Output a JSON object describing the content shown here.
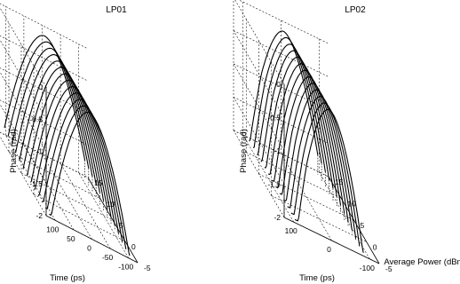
{
  "chart_data": [
    {
      "type": "line",
      "title": "LP01",
      "xlabel": "Time (ps)",
      "ylabel": "Phase (rad)",
      "zlabel": "",
      "x_ticks": [
        "100",
        "50",
        "0",
        "-50",
        "-100"
      ],
      "y_ticks": [
        "-5",
        "0",
        "5",
        "10",
        "15"
      ],
      "z_ticks": [
        "0",
        "-0.5",
        "-1",
        "-1.5",
        "-2"
      ],
      "xlim": [
        -125,
        125
      ],
      "ylim": [
        -5,
        15
      ],
      "zlim": [
        -2,
        0
      ],
      "grid": true,
      "series_power_dBm": [
        -4,
        -2.5,
        -1,
        0.5,
        2,
        3.5,
        5,
        6.5,
        8,
        9.5,
        11,
        12.5,
        14
      ],
      "peak_phase_rad": -0.1,
      "pulse_halfwidth_ps": 110
    },
    {
      "type": "line",
      "title": "LP02",
      "xlabel": "Time (ps)",
      "ylabel": "Phase (rad)",
      "zlabel": "Average Power (dBm)",
      "x_ticks": [
        "100",
        "0",
        "-100"
      ],
      "y_ticks": [
        "-5",
        "0",
        "5",
        "10",
        "15"
      ],
      "z_ticks": [
        "0",
        "-0.5",
        "-1",
        "-1.5",
        "-2"
      ],
      "xlim": [
        -125,
        125
      ],
      "ylim": [
        -5,
        15
      ],
      "zlim": [
        -2,
        0
      ],
      "grid": true,
      "series_power_dBm": [
        -4,
        -2.5,
        -1,
        0.5,
        2,
        3.5,
        5,
        6.5,
        8,
        9.5,
        11,
        12.5,
        14
      ],
      "peak_phase_rad": -0.1,
      "pulse_halfwidth_ps": 90
    }
  ]
}
